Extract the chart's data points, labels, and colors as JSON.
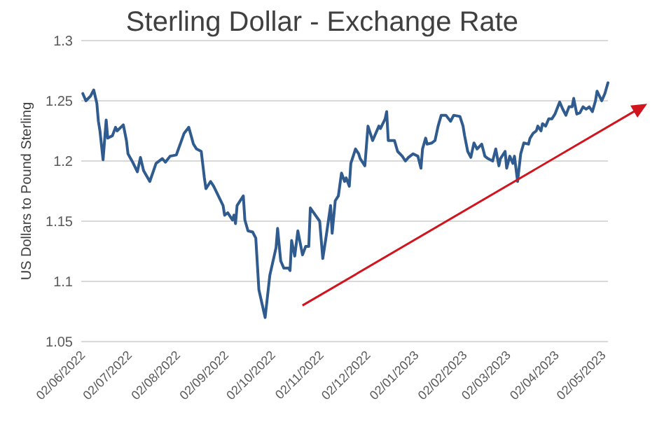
{
  "chart_data": {
    "type": "line",
    "title": "Sterling Dollar - Exchange Rate",
    "ylabel": "US Dollars to Pound Sterling",
    "xlim": [
      "2022-06-01",
      "2023-05-05"
    ],
    "xticks": [
      {
        "value": "2022-06-02",
        "label": "02/06/2022"
      },
      {
        "value": "2022-07-02",
        "label": "02/07/2022"
      },
      {
        "value": "2022-08-02",
        "label": "02/08/2022"
      },
      {
        "value": "2022-09-02",
        "label": "02/09/2022"
      },
      {
        "value": "2022-10-02",
        "label": "02/10/2022"
      },
      {
        "value": "2022-11-02",
        "label": "02/11/2022"
      },
      {
        "value": "2022-12-02",
        "label": "02/12/2022"
      },
      {
        "value": "2023-01-02",
        "label": "02/01/2023"
      },
      {
        "value": "2023-02-02",
        "label": "02/02/2023"
      },
      {
        "value": "2023-03-02",
        "label": "02/03/2023"
      },
      {
        "value": "2023-04-02",
        "label": "02/04/2023"
      },
      {
        "value": "2023-05-02",
        "label": "02/05/2023"
      }
    ],
    "ylim": [
      1.05,
      1.3
    ],
    "yticks": [
      1.05,
      1.1,
      1.15,
      1.2,
      1.25,
      1.3
    ],
    "grid": "y",
    "line_style": "solid",
    "marker": "none",
    "x": [
      "2022-06-02",
      "2022-06-04",
      "2022-06-07",
      "2022-06-09",
      "2022-06-11",
      "2022-06-12",
      "2022-06-13",
      "2022-06-15",
      "2022-06-17",
      "2022-06-18",
      "2022-06-21",
      "2022-06-23",
      "2022-06-24",
      "2022-06-28",
      "2022-06-30",
      "2022-07-01",
      "2022-07-04",
      "2022-07-07",
      "2022-07-09",
      "2022-07-11",
      "2022-07-15",
      "2022-07-19",
      "2022-07-23",
      "2022-07-25",
      "2022-07-28",
      "2022-08-01",
      "2022-08-06",
      "2022-08-09",
      "2022-08-12",
      "2022-08-14",
      "2022-08-17",
      "2022-08-19",
      "2022-08-20",
      "2022-08-23",
      "2022-08-25",
      "2022-08-28",
      "2022-08-31",
      "2022-09-01",
      "2022-09-03",
      "2022-09-06",
      "2022-09-07",
      "2022-09-08",
      "2022-09-09",
      "2022-09-13",
      "2022-09-14",
      "2022-09-16",
      "2022-09-19",
      "2022-09-21",
      "2022-09-23",
      "2022-09-27",
      "2022-09-30",
      "2022-10-04",
      "2022-10-05",
      "2022-10-07",
      "2022-10-09",
      "2022-10-12",
      "2022-10-13",
      "2022-10-14",
      "2022-10-16",
      "2022-10-18",
      "2022-10-21",
      "2022-10-23",
      "2022-10-25",
      "2022-10-26",
      "2022-11-01",
      "2022-11-03",
      "2022-11-05",
      "2022-11-08",
      "2022-11-09",
      "2022-11-11",
      "2022-11-13",
      "2022-11-15",
      "2022-11-17",
      "2022-11-18",
      "2022-11-20",
      "2022-11-21",
      "2022-11-24",
      "2022-11-26",
      "2022-11-27",
      "2022-11-30",
      "2022-12-02",
      "2022-12-05",
      "2022-12-09",
      "2022-12-10",
      "2022-12-13",
      "2022-12-14",
      "2022-12-15",
      "2022-12-19",
      "2022-12-21",
      "2022-12-24",
      "2022-12-26",
      "2022-12-28",
      "2022-12-31",
      "2023-01-03",
      "2023-01-05",
      "2023-01-06",
      "2023-01-08",
      "2023-01-09",
      "2023-01-12",
      "2023-01-14",
      "2023-01-16",
      "2023-01-18",
      "2023-01-21",
      "2023-01-24",
      "2023-01-26",
      "2023-01-30",
      "2023-02-01",
      "2023-02-02",
      "2023-02-04",
      "2023-02-06",
      "2023-02-08",
      "2023-02-10",
      "2023-02-13",
      "2023-02-15",
      "2023-02-17",
      "2023-02-20",
      "2023-02-22",
      "2023-02-24",
      "2023-02-25",
      "2023-02-28",
      "2023-03-01",
      "2023-03-03",
      "2023-03-05",
      "2023-03-06",
      "2023-03-08",
      "2023-03-10",
      "2023-03-12",
      "2023-03-15",
      "2023-03-16",
      "2023-03-18",
      "2023-03-20",
      "2023-03-21",
      "2023-03-23",
      "2023-03-24",
      "2023-03-26",
      "2023-03-28",
      "2023-03-30",
      "2023-04-01",
      "2023-04-04",
      "2023-04-06",
      "2023-04-08",
      "2023-04-10",
      "2023-04-12",
      "2023-04-13",
      "2023-04-15",
      "2023-04-17",
      "2023-04-19",
      "2023-04-21",
      "2023-04-23",
      "2023-04-25",
      "2023-04-27",
      "2023-04-28",
      "2023-05-01",
      "2023-05-03",
      "2023-05-05"
    ],
    "series": [
      {
        "color": "#2f5b8e",
        "values": [
          1.256,
          1.25,
          1.254,
          1.259,
          1.248,
          1.233,
          1.225,
          1.201,
          1.234,
          1.219,
          1.221,
          1.228,
          1.225,
          1.23,
          1.217,
          1.206,
          1.199,
          1.191,
          1.203,
          1.192,
          1.183,
          1.198,
          1.202,
          1.199,
          1.204,
          1.205,
          1.223,
          1.228,
          1.214,
          1.21,
          1.208,
          1.186,
          1.177,
          1.183,
          1.179,
          1.171,
          1.163,
          1.155,
          1.157,
          1.151,
          1.155,
          1.148,
          1.163,
          1.171,
          1.151,
          1.142,
          1.141,
          1.136,
          1.093,
          1.07,
          1.105,
          1.128,
          1.144,
          1.117,
          1.111,
          1.111,
          1.109,
          1.134,
          1.121,
          1.142,
          1.122,
          1.129,
          1.129,
          1.161,
          1.15,
          1.119,
          1.136,
          1.163,
          1.14,
          1.167,
          1.171,
          1.19,
          1.183,
          1.186,
          1.179,
          1.198,
          1.21,
          1.206,
          1.202,
          1.196,
          1.229,
          1.217,
          1.229,
          1.227,
          1.235,
          1.241,
          1.217,
          1.217,
          1.208,
          1.204,
          1.2,
          1.203,
          1.206,
          1.204,
          1.194,
          1.21,
          1.219,
          1.214,
          1.215,
          1.217,
          1.229,
          1.238,
          1.238,
          1.233,
          1.238,
          1.237,
          1.229,
          1.221,
          1.208,
          1.203,
          1.215,
          1.21,
          1.214,
          1.204,
          1.202,
          1.2,
          1.21,
          1.196,
          1.202,
          1.208,
          1.194,
          1.204,
          1.198,
          1.204,
          1.183,
          1.206,
          1.215,
          1.214,
          1.219,
          1.223,
          1.225,
          1.229,
          1.225,
          1.231,
          1.229,
          1.235,
          1.235,
          1.239,
          1.249,
          1.243,
          1.238,
          1.245,
          1.245,
          1.252,
          1.239,
          1.24,
          1.245,
          1.243,
          1.245,
          1.241,
          1.25,
          1.258,
          1.25,
          1.256,
          1.265
        ]
      }
    ]
  }
}
